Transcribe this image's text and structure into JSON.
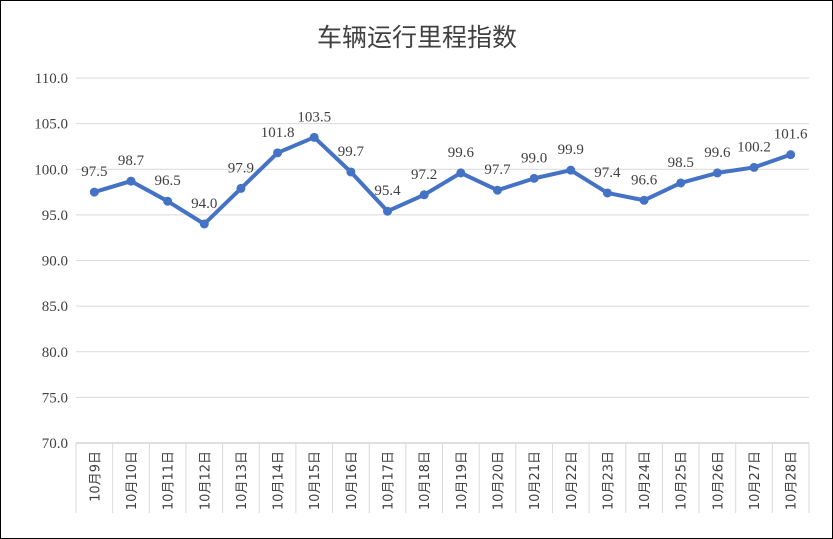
{
  "chart_data": {
    "type": "line",
    "title": "车辆运行里程指数",
    "xlabel": "",
    "ylabel": "",
    "ylim": [
      70,
      110
    ],
    "yticks": [
      "70.0",
      "75.0",
      "80.0",
      "85.0",
      "90.0",
      "95.0",
      "100.0",
      "105.0",
      "110.0"
    ],
    "grid": true,
    "legend": "none",
    "categories": [
      "10月9日",
      "10月10日",
      "10月11日",
      "10月12日",
      "10月13日",
      "10月14日",
      "10月15日",
      "10月16日",
      "10月17日",
      "10月18日",
      "10月19日",
      "10月20日",
      "10月21日",
      "10月22日",
      "10月23日",
      "10月24日",
      "10月25日",
      "10月26日",
      "10月27日",
      "10月28日"
    ],
    "series": [
      {
        "color": "#4472C4",
        "values": [
          97.5,
          98.7,
          96.5,
          94.0,
          97.9,
          101.8,
          103.5,
          99.7,
          95.4,
          97.2,
          99.6,
          97.7,
          99.0,
          99.9,
          97.4,
          96.6,
          98.5,
          99.6,
          100.2,
          101.6
        ],
        "labels": [
          "97.5",
          "98.7",
          "96.5",
          "94.0",
          "97.9",
          "101.8",
          "103.5",
          "99.7",
          "95.4",
          "97.2",
          "99.6",
          "97.7",
          "99.0",
          "99.9",
          "97.4",
          "96.6",
          "98.5",
          "99.6",
          "100.2",
          "101.6"
        ]
      }
    ]
  }
}
